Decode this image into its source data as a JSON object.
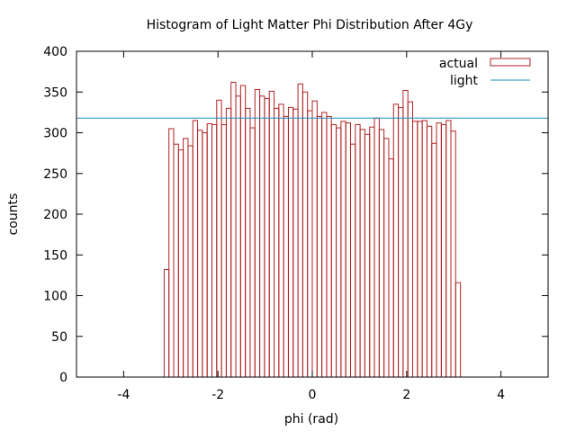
{
  "chart_data": {
    "type": "bar",
    "title": "Histogram of Light Matter Phi Distribution After 4Gy",
    "xlabel": "phi (rad)",
    "ylabel": "counts",
    "xlim": [
      -5,
      5
    ],
    "ylim": [
      0,
      400
    ],
    "x_ticks": [
      -4,
      -2,
      0,
      2,
      4
    ],
    "x_tick_labels": [
      "-4",
      "-2",
      "0",
      "2",
      "4"
    ],
    "y_ticks": [
      0,
      50,
      100,
      150,
      200,
      250,
      300,
      350,
      400
    ],
    "y_tick_labels": [
      "0",
      "50",
      "100",
      "150",
      "200",
      "250",
      "300",
      "350",
      "400"
    ],
    "grid": false,
    "legend_position": "top-right",
    "series": [
      {
        "name": "actual",
        "type": "histogram",
        "color": "#b22222",
        "bin_start": -3.1416,
        "bin_end": 3.1416,
        "values": [
          132,
          305,
          286,
          279,
          293,
          284,
          315,
          303,
          300,
          311,
          310,
          340,
          310,
          330,
          362,
          345,
          358,
          330,
          306,
          353,
          345,
          342,
          351,
          330,
          335,
          320,
          331,
          329,
          360,
          350,
          327,
          339,
          320,
          325,
          320,
          310,
          306,
          314,
          312,
          286,
          310,
          304,
          298,
          307,
          318,
          304,
          293,
          268,
          335,
          331,
          352,
          338,
          314,
          314,
          315,
          308,
          287,
          312,
          310,
          315,
          302,
          116
        ]
      },
      {
        "name": "light",
        "type": "line",
        "color": "#1f8fbf",
        "y": 318
      }
    ]
  }
}
